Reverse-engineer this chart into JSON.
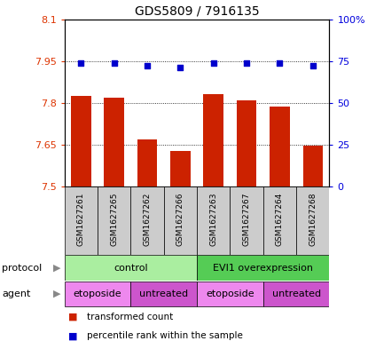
{
  "title": "GDS5809 / 7916135",
  "samples": [
    "GSM1627261",
    "GSM1627265",
    "GSM1627262",
    "GSM1627266",
    "GSM1627263",
    "GSM1627267",
    "GSM1627264",
    "GSM1627268"
  ],
  "bar_values": [
    7.825,
    7.818,
    7.668,
    7.627,
    7.833,
    7.808,
    7.787,
    7.648
  ],
  "percentile_values": [
    74,
    74,
    72,
    71,
    74,
    74,
    74,
    72
  ],
  "ylim_left": [
    7.5,
    8.1
  ],
  "ylim_right": [
    0,
    100
  ],
  "yticks_left": [
    7.5,
    7.65,
    7.8,
    7.95,
    8.1
  ],
  "ytick_labels_left": [
    "7.5",
    "7.65",
    "7.8",
    "7.95",
    "8.1"
  ],
  "yticks_right": [
    0,
    25,
    50,
    75,
    100
  ],
  "ytick_labels_right": [
    "0",
    "25",
    "50",
    "75",
    "100%"
  ],
  "bar_color": "#cc2200",
  "dot_color": "#0000cc",
  "bar_bottom": 7.5,
  "protocol_groups": [
    {
      "label": "control",
      "start": 0,
      "end": 4,
      "color": "#aaeea0"
    },
    {
      "label": "EVI1 overexpression",
      "start": 4,
      "end": 8,
      "color": "#55cc55"
    }
  ],
  "agent_groups": [
    {
      "label": "etoposide",
      "start": 0,
      "end": 2,
      "color": "#ee88ee"
    },
    {
      "label": "untreated",
      "start": 2,
      "end": 4,
      "color": "#cc55cc"
    },
    {
      "label": "etoposide",
      "start": 4,
      "end": 6,
      "color": "#ee88ee"
    },
    {
      "label": "untreated",
      "start": 6,
      "end": 8,
      "color": "#cc55cc"
    }
  ],
  "protocol_label": "protocol",
  "agent_label": "agent",
  "legend_bar_label": "transformed count",
  "legend_dot_label": "percentile rank within the sample",
  "sample_area_color": "#cccccc",
  "left_tick_color": "#dd3300",
  "right_tick_color": "#0000dd"
}
